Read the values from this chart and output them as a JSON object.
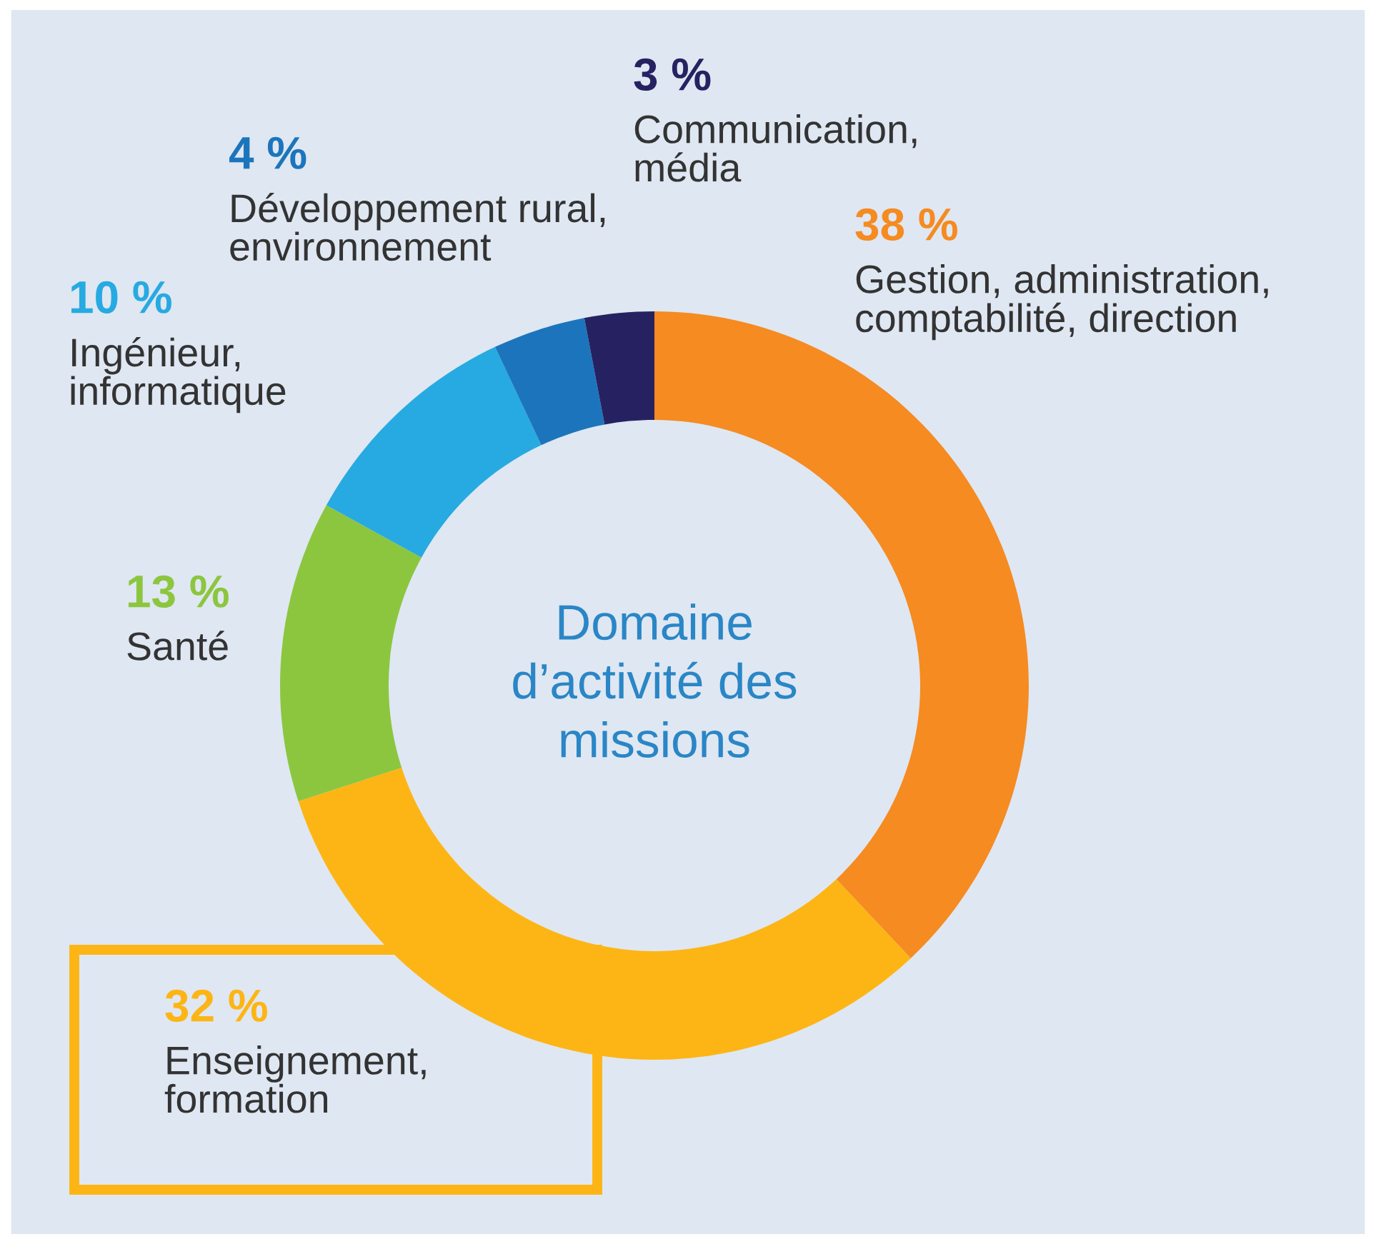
{
  "chart_data": {
    "type": "donut",
    "title": "Domaine\nd’activité des\nmissions",
    "categories": [
      "Gestion, administration,\ncomptabilité, direction",
      "Enseignement,\nformation",
      "Santé",
      "Ingénieur,\ninformatique",
      "Développement rural,\nenvironnement",
      "Communication,\nmédia"
    ],
    "values": [
      38,
      32,
      13,
      10,
      4,
      3
    ],
    "value_labels": [
      "38 %",
      "32 %",
      "13 %",
      "10 %",
      "4 %",
      "3 %"
    ],
    "colors": [
      "#f58b21",
      "#fdb515",
      "#8cc63f",
      "#27aae1",
      "#1c75bc",
      "#262262"
    ]
  }
}
